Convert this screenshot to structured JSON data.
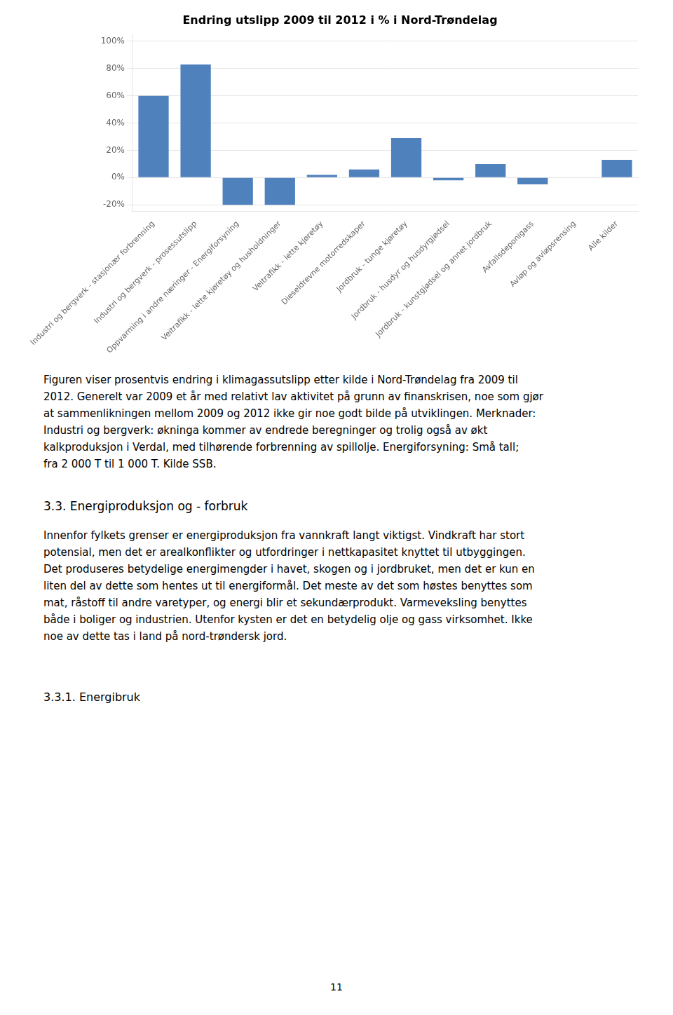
{
  "chart_data": {
    "type": "bar",
    "title": "Endring utslipp 2009 til 2012 i % i Nord-Trøndelag",
    "categories": [
      "Industri og bergverk - stasjonær forbrenning",
      "Industri og bergverk - prosessutslipp",
      "Oppvarming i andre næringer - Energiforsyning",
      "Veitrafikk - lette kjøretøy og husholdninger",
      "Veitrafikk - lette kjøretøy",
      "Dieseldrevne motorredskaper",
      "Jordbruk - tunge kjøretøy",
      "Jordbruk - husdyr og husdyrgjødsel",
      "Jordbruk - kunstgjødsel og annet jordbruk",
      "Avfallsdeponigass",
      "Avløp og avløpsrensing",
      "Alle kilder"
    ],
    "values": [
      60,
      83,
      -20,
      -20,
      2,
      6,
      29,
      -2,
      10,
      -5,
      0,
      13
    ],
    "color": "#4f81bd",
    "ylim": [
      -25,
      105
    ],
    "yticks": [
      {
        "value": -20,
        "label": "-20%"
      },
      {
        "value": 0,
        "label": "0%"
      },
      {
        "value": 20,
        "label": "20%"
      },
      {
        "value": 40,
        "label": "40%"
      },
      {
        "value": 60,
        "label": "60%"
      },
      {
        "value": 80,
        "label": "80%"
      },
      {
        "value": 100,
        "label": "100%"
      }
    ],
    "grid": true
  },
  "body_text": "Figuren viser prosentvis endring i klimagassutslipp etter kilde i Nord-Trøndelag fra 2009 til\n2012. Generelt var 2009 et år med relativt lav aktivitet på grunn av finanskrisen, noe som gjør\nat sammenlikningen mellom 2009 og 2012 ikke gir noe godt bilde på utviklingen. Merknader:\nIndustri og bergverk: økninga kommer av endrede beregninger og trolig også av økt\nkalkproduksjon i Verdal, med tilhørende forbrenning av spillolje. Energiforsyning: Små tall;\nfra 2 000 T til 1 000 T. Kilde SSB.",
  "section_title": "3.3.    Energiproduksjon og - forbruk",
  "section_body": "Innenfor fylkets grenser er energiproduksjon fra vannkraft langt viktigst. Vindkraft har stort\npotensial, men det er arealkonflikter og utfordringer i nettkapasitet knyttet til utbyggingen.\nDet produseres betydelige energimengder i havet, skogen og i jordbruket, men det er kun en\nliten del av dette som hentes ut til energiformål. Det meste av det som høstes benyttes som\nmat, råstoff til andre varetyper, og energi blir et sekundærprodukt. Varmeveksling benyttes\nbåde i boliger og industrien. Utenfor kysten er det en betydelig olje og gass virksomhet. Ikke\nnoe av dette tas i land på nord-trøndersk jord.",
  "subsection_title": "3.3.1.  Energibruk",
  "page_number": "11"
}
